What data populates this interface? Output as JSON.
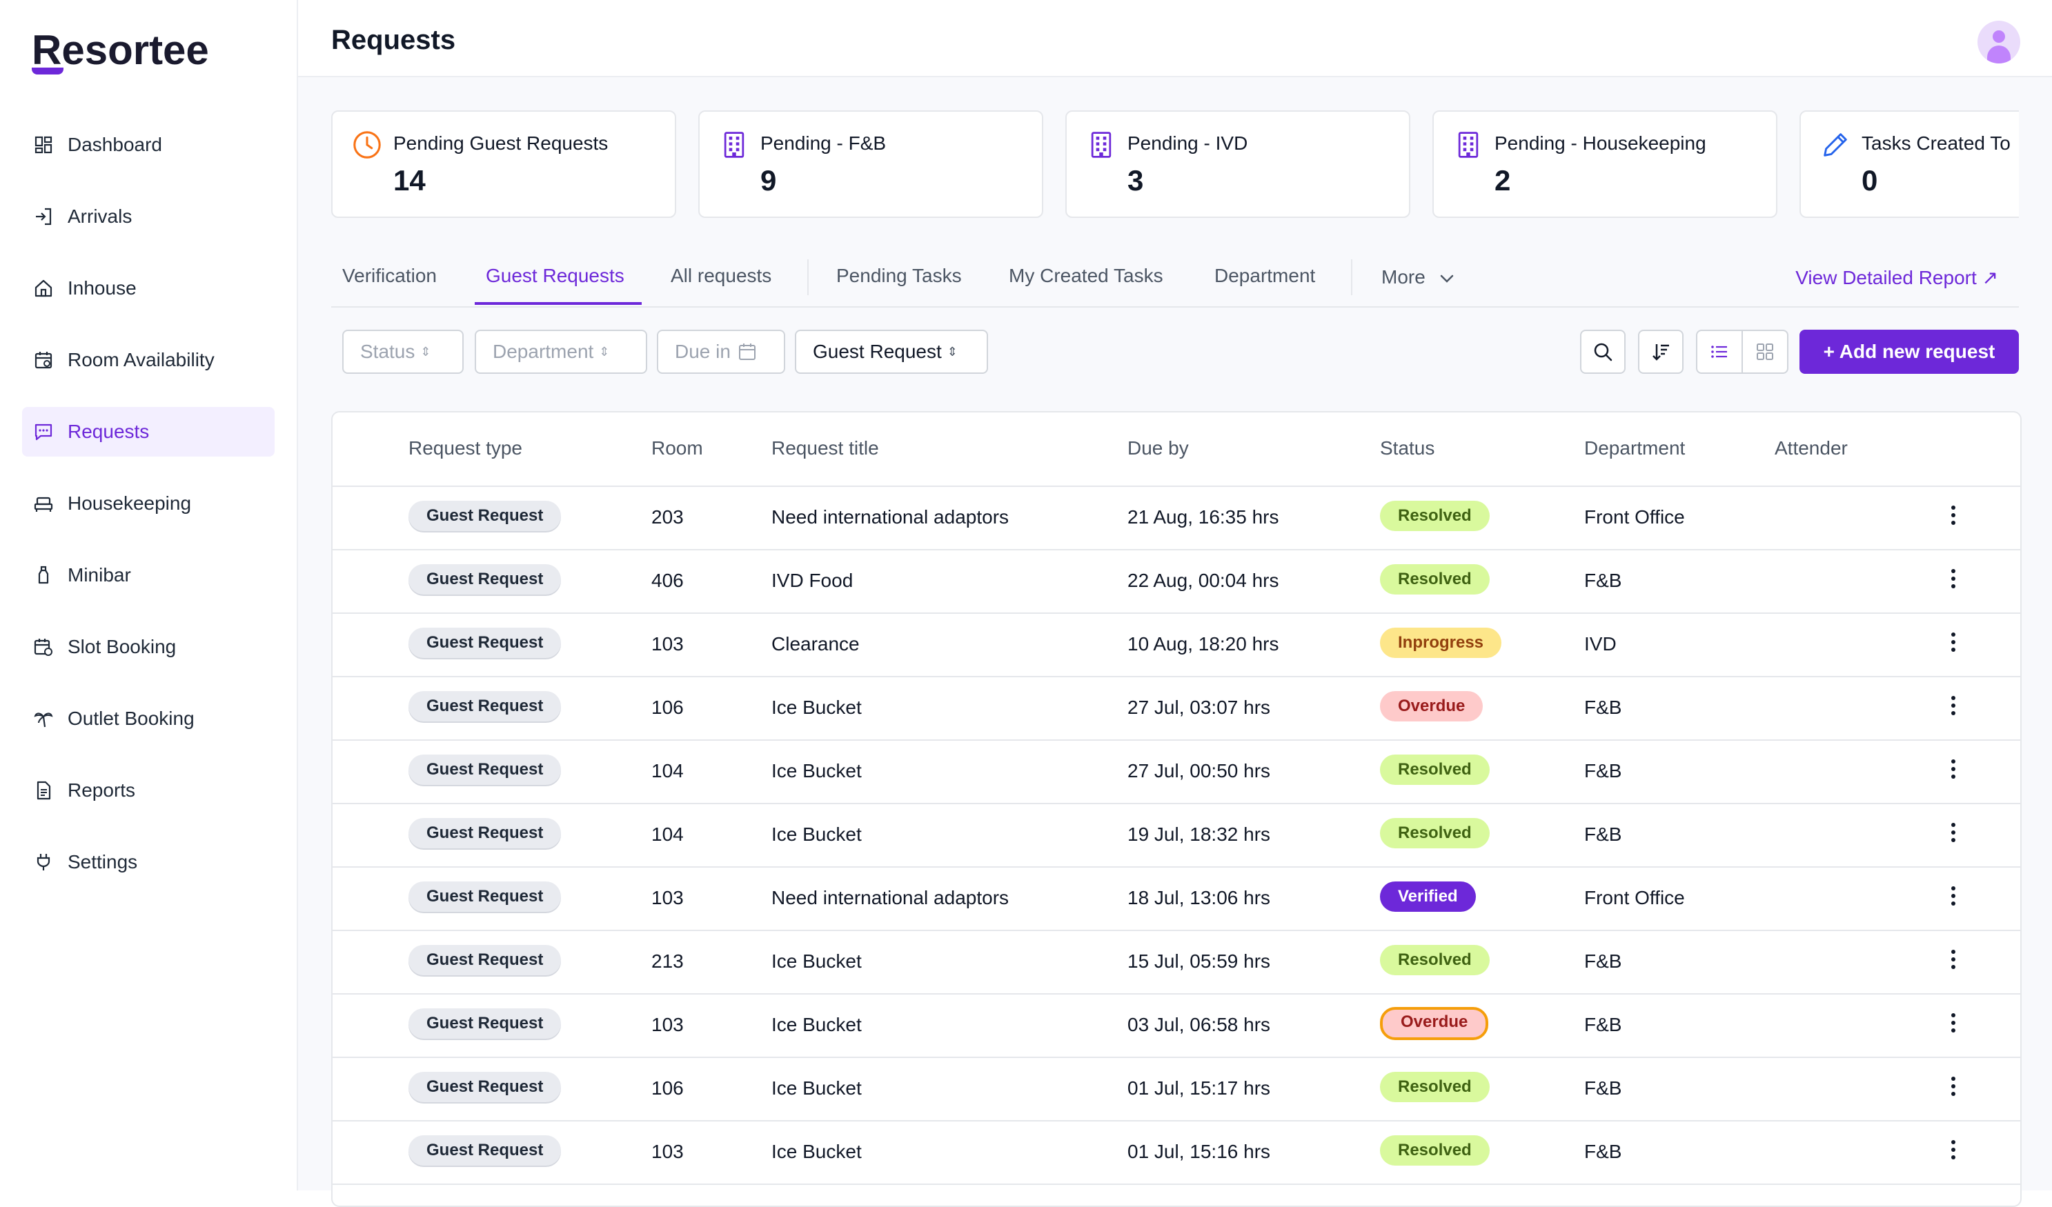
{
  "app": {
    "logo_text": "Resortee"
  },
  "sidebar": {
    "items": [
      {
        "label": "Dashboard",
        "icon": "dashboard-icon"
      },
      {
        "label": "Arrivals",
        "icon": "arrivals-icon"
      },
      {
        "label": "Inhouse",
        "icon": "home-icon"
      },
      {
        "label": "Room Availability",
        "icon": "calendar-icon"
      },
      {
        "label": "Requests",
        "icon": "chat-icon",
        "active": true
      },
      {
        "label": "Housekeeping",
        "icon": "bed-icon"
      },
      {
        "label": "Minibar",
        "icon": "bottle-icon"
      },
      {
        "label": "Slot Booking",
        "icon": "calendar-clock-icon"
      },
      {
        "label": "Outlet Booking",
        "icon": "palm-icon"
      },
      {
        "label": "Reports",
        "icon": "document-icon"
      },
      {
        "label": "Settings",
        "icon": "plug-icon"
      }
    ]
  },
  "header": {
    "title": "Requests"
  },
  "cards": [
    {
      "label": "Pending Guest Requests",
      "value": "14",
      "icon": "clock-icon"
    },
    {
      "label": "Pending - F&B",
      "value": "9",
      "icon": "building-icon"
    },
    {
      "label": "Pending - IVD",
      "value": "3",
      "icon": "building-icon"
    },
    {
      "label": "Pending - Housekeeping",
      "value": "2",
      "icon": "building-icon"
    },
    {
      "label": "Tasks Created To",
      "value": "0",
      "icon": "pencil-icon"
    }
  ],
  "tabs": {
    "items": [
      "Verification",
      "Guest Requests",
      "All requests",
      "Pending Tasks",
      "My Created Tasks",
      "Department"
    ],
    "active": "Guest Requests",
    "more": "More",
    "report_link": "View Detailed Report ↗"
  },
  "filters": {
    "status": "Status",
    "department": "Department",
    "due_in": "Due in",
    "type": "Guest Request",
    "add_button": "+ Add new request"
  },
  "table": {
    "headers": {
      "type": "Request type",
      "room": "Room",
      "title": "Request title",
      "due": "Due by",
      "status": "Status",
      "department": "Department",
      "attender": "Attender"
    },
    "rows": [
      {
        "type": "Guest Request",
        "room": "203",
        "title": "Need international adaptors",
        "due": "21 Aug, 16:35 hrs",
        "status": "Resolved",
        "department": "Front Office"
      },
      {
        "type": "Guest Request",
        "room": "406",
        "title": "IVD Food",
        "due": "22 Aug, 00:04 hrs",
        "status": "Resolved",
        "department": "F&B"
      },
      {
        "type": "Guest Request",
        "room": "103",
        "title": "Clearance",
        "due": "10 Aug, 18:20 hrs",
        "status": "Inprogress",
        "department": "IVD"
      },
      {
        "type": "Guest Request",
        "room": "106",
        "title": "Ice Bucket",
        "due": "27 Jul, 03:07 hrs",
        "status": "Overdue",
        "department": "F&B"
      },
      {
        "type": "Guest Request",
        "room": "104",
        "title": "Ice Bucket",
        "due": "27 Jul, 00:50 hrs",
        "status": "Resolved",
        "department": "F&B"
      },
      {
        "type": "Guest Request",
        "room": "104",
        "title": "Ice Bucket",
        "due": "19 Jul, 18:32 hrs",
        "status": "Resolved",
        "department": "F&B"
      },
      {
        "type": "Guest Request",
        "room": "103",
        "title": "Need international adaptors",
        "due": "18 Jul, 13:06 hrs",
        "status": "Verified",
        "department": "Front Office"
      },
      {
        "type": "Guest Request",
        "room": "213",
        "title": "Ice Bucket",
        "due": "15 Jul, 05:59 hrs",
        "status": "Resolved",
        "department": "F&B"
      },
      {
        "type": "Guest Request",
        "room": "103",
        "title": "Ice Bucket",
        "due": "03 Jul, 06:58 hrs",
        "status": "Overdue",
        "department": "F&B",
        "highlighted": true
      },
      {
        "type": "Guest Request",
        "room": "106",
        "title": "Ice Bucket",
        "due": "01 Jul, 15:17 hrs",
        "status": "Resolved",
        "department": "F&B"
      },
      {
        "type": "Guest Request",
        "room": "103",
        "title": "Ice Bucket",
        "due": "01 Jul, 15:16 hrs",
        "status": "Resolved",
        "department": "F&B"
      }
    ]
  },
  "colors": {
    "accent": "#6d28d9",
    "resolved_bg": "#d9f99d",
    "resolved_fg": "#3f6212",
    "inprogress_bg": "#fde68a",
    "inprogress_fg": "#92400e",
    "overdue_bg": "#fecaca",
    "overdue_fg": "#991b1b",
    "verified_bg": "#6d28d9",
    "verified_fg": "#ffffff",
    "highlight_border": "#f59e0b"
  }
}
